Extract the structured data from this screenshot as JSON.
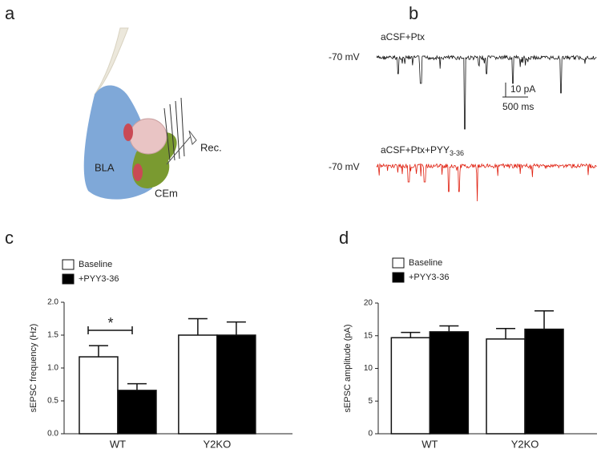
{
  "panel_labels": [
    "a",
    "b",
    "c",
    "d"
  ],
  "diagram": {
    "labels": [
      "BLA",
      "CEm",
      "Rec."
    ]
  },
  "traces": {
    "holding": [
      "-70 mV",
      "-70 mV"
    ],
    "conditions": [
      "aCSF+Ptx",
      "aCSF+Ptx+PYY"
    ],
    "condition_subscript": "3-36",
    "scale_bar": [
      "10 pA",
      "500 ms"
    ]
  },
  "chart_data": [
    {
      "type": "bar",
      "ylabel": "sEPSC frequency (Hz)",
      "categories": [
        "WT",
        "Y2KO"
      ],
      "series": [
        {
          "name": "Baseline",
          "color": "#ffffff",
          "values": [
            1.17,
            1.5
          ],
          "errors": [
            0.17,
            0.25
          ]
        },
        {
          "name": "+PYY3-36",
          "color": "#000000",
          "values": [
            0.66,
            1.5
          ],
          "errors": [
            0.1,
            0.2
          ]
        }
      ],
      "ylim": [
        0,
        2
      ],
      "yticks": [
        {
          "value": 0,
          "label": "0.0"
        },
        {
          "value": 0.5,
          "label": "0.5"
        },
        {
          "value": 1,
          "label": "1.0"
        },
        {
          "value": 1.5,
          "label": "1.5"
        },
        {
          "value": 2,
          "label": "2.0"
        }
      ],
      "annotations": [
        "*"
      ]
    },
    {
      "type": "bar",
      "ylabel": "sEPSC amplitude (pA)",
      "categories": [
        "WT",
        "Y2KO"
      ],
      "series": [
        {
          "name": "Baseline",
          "color": "#ffffff",
          "values": [
            14.7,
            14.5
          ],
          "errors": [
            0.8,
            1.6
          ]
        },
        {
          "name": "+PYY3-36",
          "color": "#000000",
          "values": [
            15.6,
            16.0
          ],
          "errors": [
            0.9,
            2.8
          ]
        }
      ],
      "ylim": [
        0,
        20
      ],
      "yticks": [
        0,
        5,
        10,
        15,
        20
      ]
    }
  ]
}
